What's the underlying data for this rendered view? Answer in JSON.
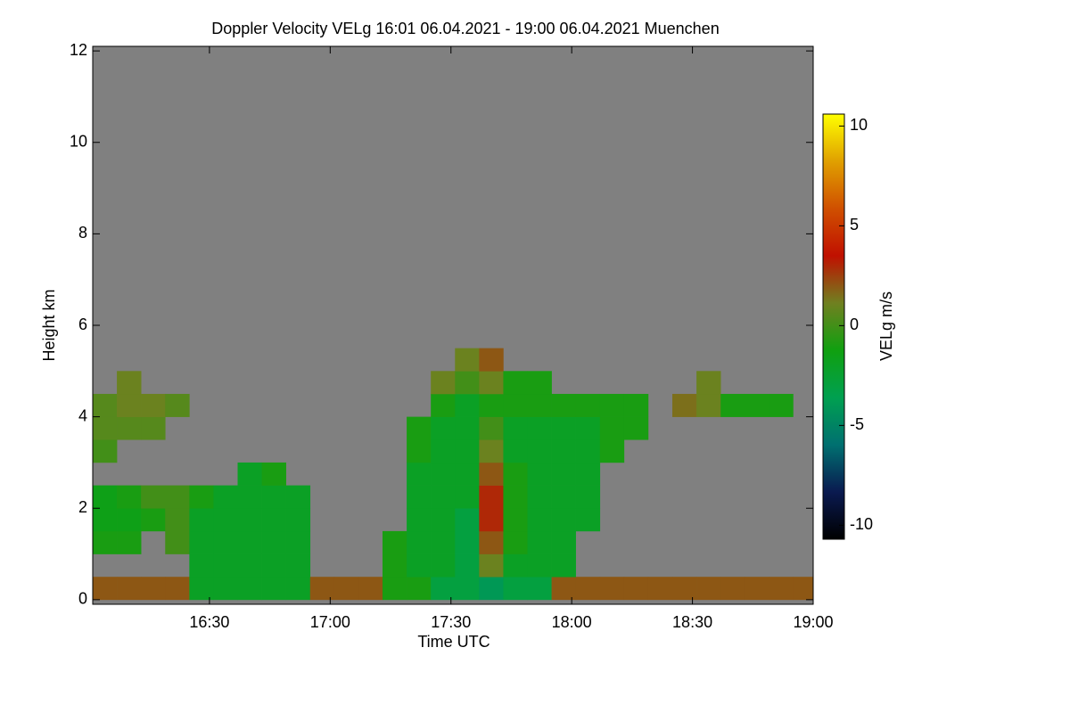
{
  "chart_data": {
    "type": "heatmap",
    "title": "Doppler Velocity VELg   16:01 06.04.2021 - 19:00 06.04.2021 Muenchen",
    "x_label": "Time UTC",
    "y_label": "Height km",
    "colorbar_label": "VELg m/s",
    "xlim": [
      961,
      1140
    ],
    "xticks": [
      {
        "value": 990,
        "label": "16:30"
      },
      {
        "value": 1020,
        "label": "17:00"
      },
      {
        "value": 1050,
        "label": "17:30"
      },
      {
        "value": 1080,
        "label": "18:00"
      },
      {
        "value": 1110,
        "label": "18:30"
      },
      {
        "value": 1140,
        "label": "19:00"
      }
    ],
    "ylim": [
      -0.1,
      12.1
    ],
    "yticks": [
      0,
      2,
      4,
      6,
      8,
      10,
      12
    ],
    "zlim": [
      -10.7,
      10.6
    ],
    "zticks": [
      -10,
      -5,
      0,
      5,
      10
    ],
    "colors": [
      "#000000",
      "#0a1a50",
      "#007070",
      "#00a050",
      "#10a010",
      "#708020",
      "#c01000",
      "#d05000",
      "#e0a000",
      "#ffff00"
    ],
    "background_color": "#808080",
    "x_bins": [
      961,
      967,
      973,
      979,
      985,
      991,
      997,
      1003,
      1009,
      1015,
      1021,
      1027,
      1033,
      1039,
      1045,
      1051,
      1057,
      1063,
      1069,
      1075,
      1081,
      1087,
      1093,
      1099,
      1105,
      1111,
      1117,
      1123,
      1129,
      1135,
      1140
    ],
    "y_bins": [
      0,
      0.5,
      1,
      1.5,
      2,
      2.5,
      3,
      3.5,
      4,
      4.5,
      5,
      5.5
    ],
    "z": [
      [
        2,
        2,
        2,
        2,
        -2,
        -2,
        -2,
        -2,
        -2,
        2,
        2,
        2,
        -1,
        -1,
        -3,
        -3,
        -4,
        -3,
        -3,
        2,
        2,
        2,
        2,
        2,
        2,
        2,
        2,
        2,
        2,
        2
      ],
      [
        null,
        null,
        null,
        null,
        -2,
        -2,
        -2,
        -2,
        -2,
        null,
        null,
        null,
        -1,
        -2,
        -2,
        -3,
        1,
        -2,
        -2,
        -2,
        null,
        null,
        null,
        null,
        null,
        null,
        null,
        null,
        null,
        null
      ],
      [
        -1,
        -1,
        null,
        0,
        -2,
        -2,
        -2,
        -2,
        -2,
        null,
        null,
        null,
        -1,
        -2,
        -2,
        -3,
        2,
        -1,
        -2,
        -2,
        null,
        null,
        null,
        null,
        null,
        null,
        null,
        null,
        null,
        null
      ],
      [
        -1.5,
        -1.5,
        -1,
        0,
        -2,
        -2,
        -2,
        -2,
        -2,
        null,
        null,
        null,
        null,
        -2,
        -2,
        -3,
        3,
        -1,
        -2,
        -2,
        -2,
        null,
        null,
        null,
        null,
        null,
        null,
        null,
        null,
        null
      ],
      [
        -1.5,
        -1,
        0,
        0,
        -1,
        -2,
        -2,
        -2,
        -2,
        null,
        null,
        null,
        null,
        -2,
        -2,
        -2,
        3,
        -1,
        -2,
        -2,
        -2,
        null,
        null,
        null,
        null,
        null,
        null,
        null,
        null,
        null
      ],
      [
        null,
        null,
        null,
        null,
        null,
        null,
        -2,
        -1,
        null,
        null,
        null,
        null,
        null,
        -2,
        -2,
        -2,
        2,
        -1,
        -2,
        -2,
        -2,
        null,
        null,
        null,
        null,
        null,
        null,
        null,
        null,
        null
      ],
      [
        0,
        null,
        null,
        null,
        null,
        null,
        null,
        null,
        null,
        null,
        null,
        null,
        null,
        -1,
        -2,
        -2,
        1,
        -2,
        -2,
        -2,
        -2,
        -1,
        null,
        null,
        null,
        null,
        null,
        null,
        null,
        null
      ],
      [
        0.5,
        0.5,
        0.5,
        null,
        null,
        null,
        null,
        null,
        null,
        null,
        null,
        null,
        null,
        -1,
        -2,
        -2,
        0,
        -2,
        -2,
        -2,
        -2,
        -1,
        -1,
        null,
        null,
        null,
        null,
        null,
        null,
        null
      ],
      [
        0.5,
        1,
        1,
        0.5,
        null,
        null,
        null,
        null,
        null,
        null,
        null,
        null,
        null,
        null,
        -1,
        -2,
        -1,
        -1,
        -1,
        -1,
        -1,
        -1,
        -1,
        null,
        1.5,
        1,
        -1,
        -1,
        -1,
        null
      ],
      [
        null,
        1,
        null,
        null,
        null,
        null,
        null,
        null,
        null,
        null,
        null,
        null,
        null,
        null,
        1,
        0,
        1,
        -1,
        -1,
        null,
        null,
        null,
        null,
        null,
        null,
        1,
        null,
        null,
        null,
        null
      ],
      [
        null,
        null,
        null,
        null,
        null,
        null,
        null,
        null,
        null,
        null,
        null,
        null,
        null,
        null,
        null,
        1,
        2,
        null,
        null,
        null,
        null,
        null,
        null,
        null,
        null,
        null,
        null,
        null,
        null,
        null
      ]
    ]
  }
}
